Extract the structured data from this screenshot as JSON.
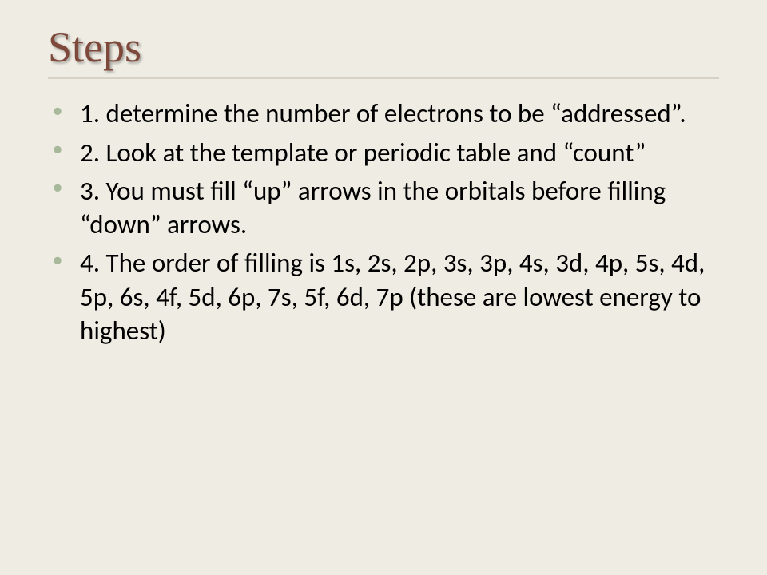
{
  "slide": {
    "title": "Steps",
    "title_color": "#7e493a",
    "background_color": "#eeece3",
    "bullet_color": "#a7b99a",
    "underline_color": "#d7d2c5",
    "title_fontsize": 54,
    "body_fontsize": 33,
    "items": [
      "1.  determine the number of electrons to be “addressed”.",
      "2.  Look at the template or periodic table and “count”",
      "3.  You must fill “up” arrows in the orbitals before filling “down” arrows.",
      "4.  The order of filling is 1s, 2s, 2p, 3s, 3p, 4s, 3d, 4p, 5s, 4d, 5p, 6s, 4f, 5d, 6p, 7s, 5f, 6d, 7p (these are lowest energy to highest)"
    ]
  }
}
